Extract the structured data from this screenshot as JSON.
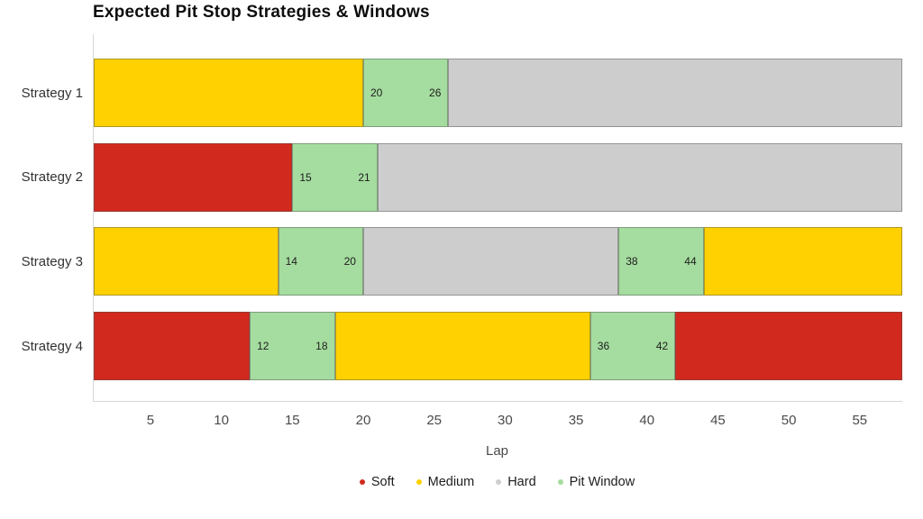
{
  "chart_data": {
    "type": "stacked_bar_horizontal",
    "title": "Expected Pit Stop Strategies & Windows",
    "xlabel": "Lap",
    "xlim": [
      1,
      58
    ],
    "xticks": [
      5,
      10,
      15,
      20,
      25,
      30,
      35,
      40,
      45,
      50,
      55
    ],
    "grid": false,
    "legend_position": "bottom-center",
    "categories": [
      "Strategy 1",
      "Strategy 2",
      "Strategy 3",
      "Strategy 4"
    ],
    "legend": [
      "Soft",
      "Medium",
      "Hard",
      "Pit Window"
    ],
    "colors": {
      "Soft": "#d2291e",
      "Medium": "#ffd100",
      "Hard": "#cdcdcd",
      "Pit Window": "#a5dc9f"
    },
    "rows": [
      {
        "category": "Strategy 1",
        "segments": [
          {
            "compound": "Medium",
            "start": 1,
            "end": 20
          },
          {
            "compound": "Pit Window",
            "start": 20,
            "end": 26,
            "labels": [
              "20",
              "26"
            ]
          },
          {
            "compound": "Hard",
            "start": 26,
            "end": 58
          }
        ]
      },
      {
        "category": "Strategy 2",
        "segments": [
          {
            "compound": "Soft",
            "start": 1,
            "end": 15
          },
          {
            "compound": "Pit Window",
            "start": 15,
            "end": 21,
            "labels": [
              "15",
              "21"
            ]
          },
          {
            "compound": "Hard",
            "start": 21,
            "end": 58
          }
        ]
      },
      {
        "category": "Strategy 3",
        "segments": [
          {
            "compound": "Medium",
            "start": 1,
            "end": 14
          },
          {
            "compound": "Pit Window",
            "start": 14,
            "end": 20,
            "labels": [
              "14",
              "20"
            ]
          },
          {
            "compound": "Hard",
            "start": 20,
            "end": 38
          },
          {
            "compound": "Pit Window",
            "start": 38,
            "end": 44,
            "labels": [
              "38",
              "44"
            ]
          },
          {
            "compound": "Medium",
            "start": 44,
            "end": 58
          }
        ]
      },
      {
        "category": "Strategy 4",
        "segments": [
          {
            "compound": "Soft",
            "start": 1,
            "end": 12
          },
          {
            "compound": "Pit Window",
            "start": 12,
            "end": 18,
            "labels": [
              "12",
              "18"
            ]
          },
          {
            "compound": "Medium",
            "start": 18,
            "end": 36
          },
          {
            "compound": "Pit Window",
            "start": 36,
            "end": 42,
            "labels": [
              "36",
              "42"
            ]
          },
          {
            "compound": "Soft",
            "start": 42,
            "end": 58
          }
        ]
      }
    ]
  }
}
